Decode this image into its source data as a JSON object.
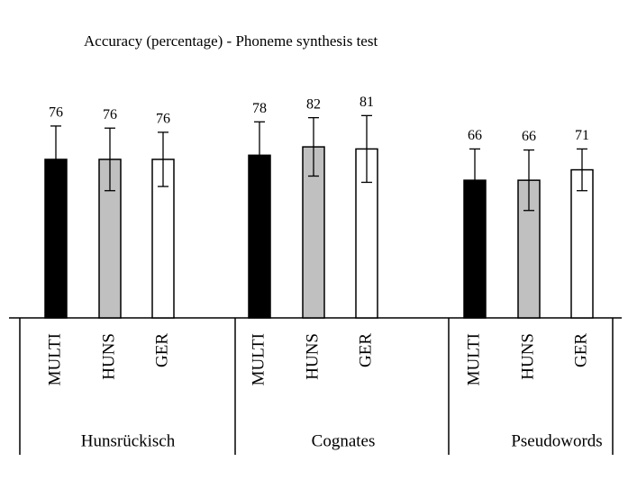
{
  "chart_data": {
    "type": "bar",
    "title": "Accuracy (percentage) - Phoneme synthesis test",
    "categories": [
      "Hunsrückisch",
      "Cognates",
      "Pseudowords"
    ],
    "series": [
      {
        "name": "MULTI",
        "color": "#000000",
        "values": [
          76,
          78,
          66
        ],
        "errors": [
          16,
          16,
          15
        ]
      },
      {
        "name": "HUNS",
        "color": "#c0c0c0",
        "values": [
          76,
          82,
          66
        ],
        "errors": [
          15,
          14,
          14.5
        ]
      },
      {
        "name": "GER",
        "color": "#ffffff",
        "values": [
          76,
          81,
          71
        ],
        "errors": [
          13,
          16,
          10
        ]
      }
    ]
  }
}
